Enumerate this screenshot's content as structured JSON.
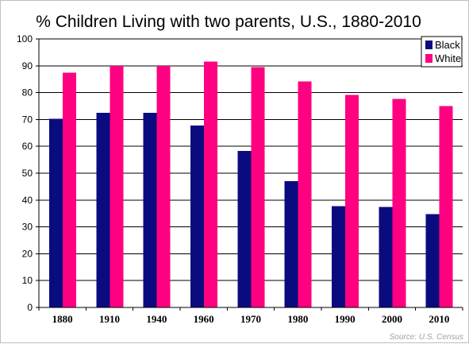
{
  "chart_data": {
    "type": "bar",
    "title": "% Children Living with two parents, U.S., 1880-2010",
    "categories": [
      "1880",
      "1910",
      "1940",
      "1960",
      "1970",
      "1980",
      "1990",
      "2000",
      "2010"
    ],
    "series": [
      {
        "name": "Black",
        "color": "#0b0b80",
        "values": [
          70.2,
          72.5,
          72.5,
          67.8,
          58.3,
          47.1,
          37.7,
          37.5,
          34.8
        ]
      },
      {
        "name": "White",
        "color": "#ff0080",
        "values": [
          87.4,
          89.9,
          90.0,
          91.5,
          89.5,
          84.2,
          79.1,
          77.6,
          75.0
        ]
      }
    ],
    "ylim": [
      0,
      100
    ],
    "yticks": [
      0,
      10,
      20,
      30,
      40,
      50,
      60,
      70,
      80,
      90,
      100
    ],
    "ytick_labels": [
      "0",
      "10",
      "20",
      "30",
      "40",
      "50",
      "60",
      "70",
      "80",
      "90",
      "100"
    ],
    "grid": "horizontal",
    "legend_position": "top-right",
    "source": "Source: U.S. Census"
  }
}
